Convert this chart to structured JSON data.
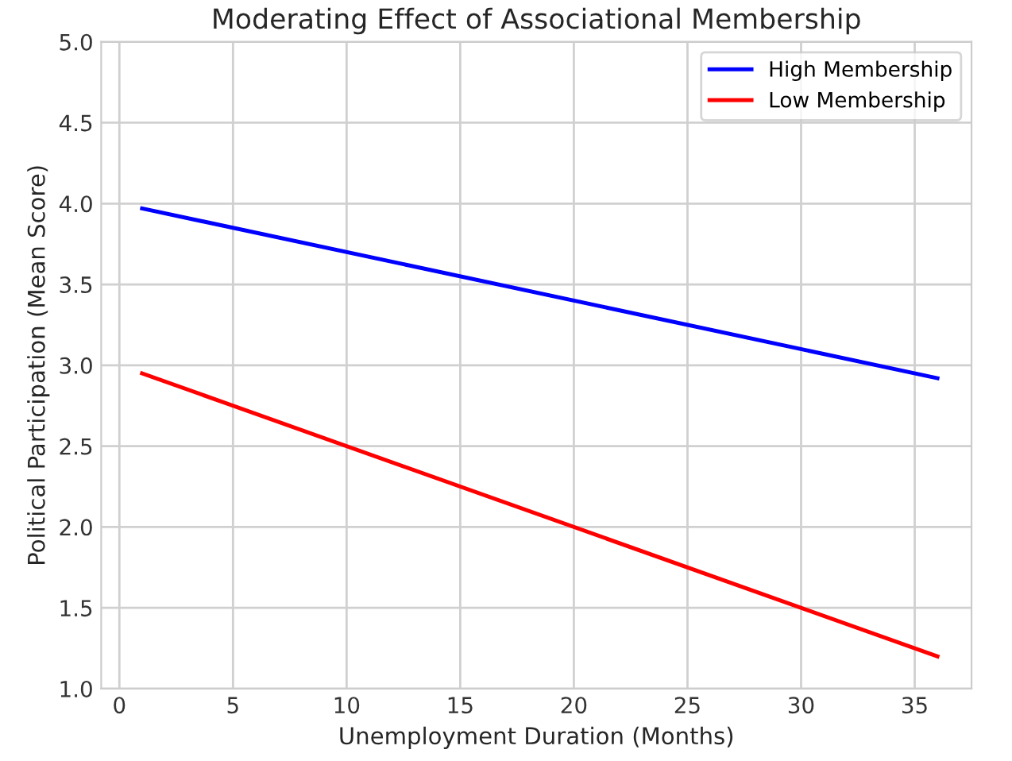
{
  "chart_data": {
    "type": "line",
    "title": "Moderating Effect of Associational Membership",
    "xlabel": "Unemployment Duration (Months)",
    "ylabel": "Political Participation (Mean Score)",
    "x": [
      1,
      36
    ],
    "series": [
      {
        "name": "High Membership",
        "color": "#0000ff",
        "values": [
          3.97,
          2.92
        ]
      },
      {
        "name": "Low Membership",
        "color": "#ff0000",
        "values": [
          2.95,
          1.2
        ]
      }
    ],
    "xlim": [
      -0.8,
      37.5
    ],
    "xticks": [
      0,
      5,
      10,
      15,
      20,
      25,
      30,
      35
    ],
    "ylim": [
      1.0,
      5.0
    ],
    "yticks": [
      {
        "value": 1.0,
        "label": "1.0"
      },
      {
        "value": 1.5,
        "label": "1.5"
      },
      {
        "value": 2.0,
        "label": "2.0"
      },
      {
        "value": 2.5,
        "label": "2.5"
      },
      {
        "value": 3.0,
        "label": "3.0"
      },
      {
        "value": 3.5,
        "label": "3.5"
      },
      {
        "value": 4.0,
        "label": "4.0"
      },
      {
        "value": 4.5,
        "label": "4.5"
      },
      {
        "value": 5.0,
        "label": "5.0"
      }
    ],
    "grid": true,
    "legend": "top right",
    "marker": "none",
    "line_style": "solid"
  }
}
